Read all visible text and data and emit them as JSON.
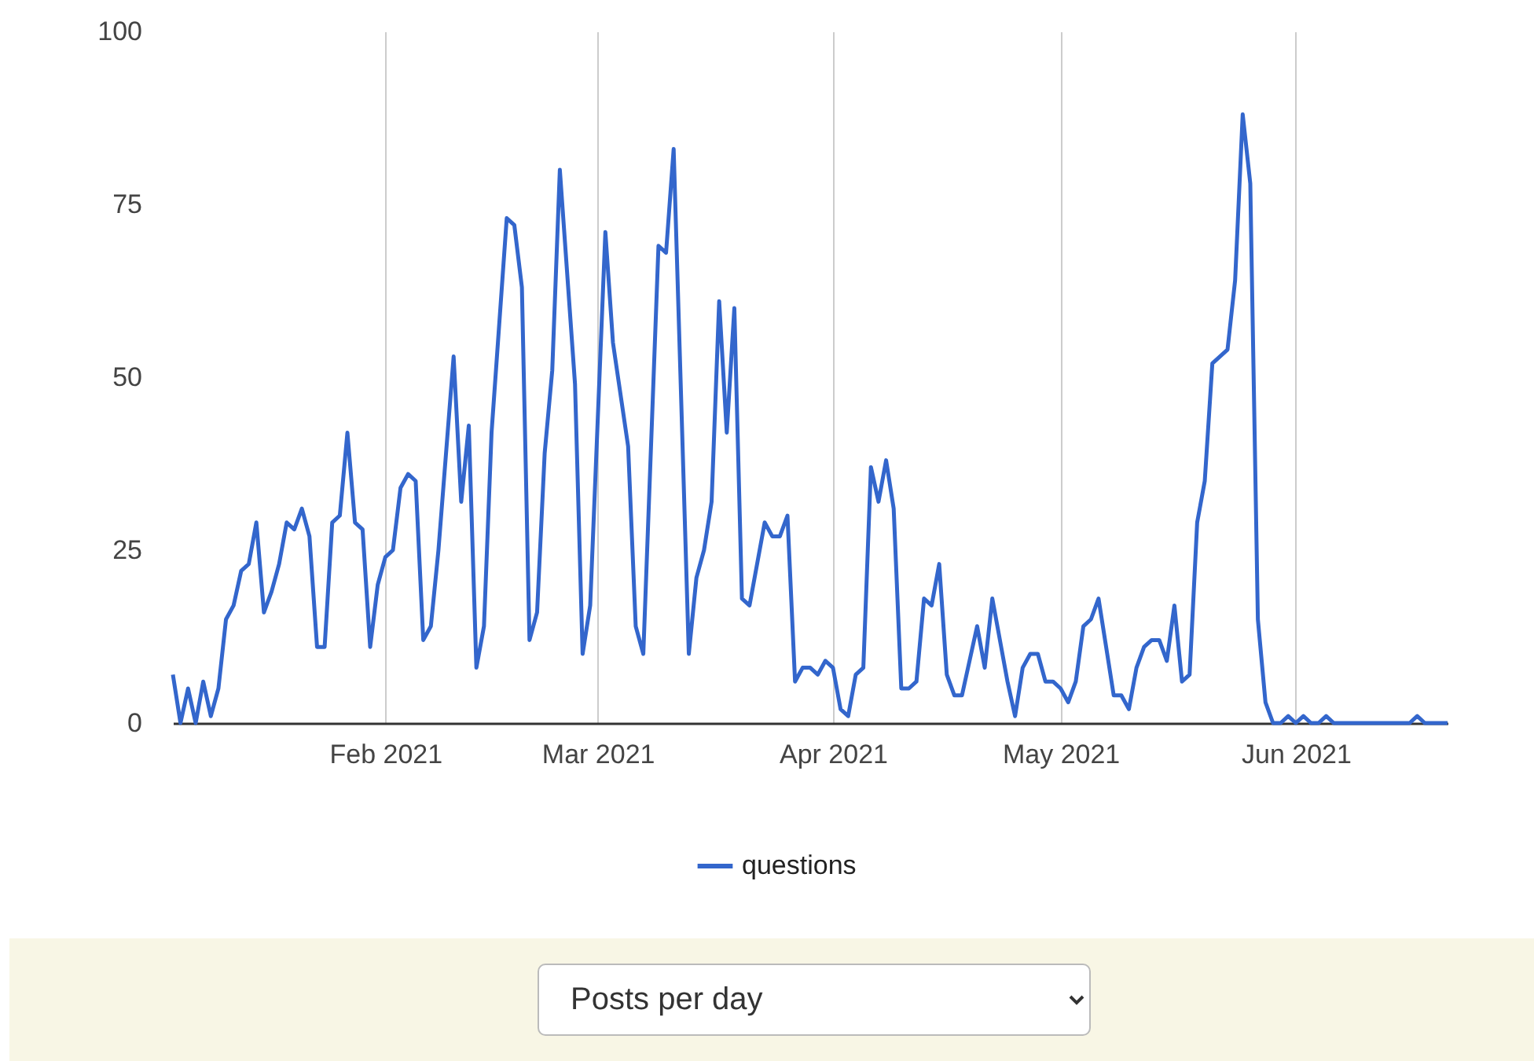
{
  "chart_data": {
    "type": "line",
    "x": [
      "2021-01-04",
      "2021-01-05",
      "2021-01-06",
      "2021-01-07",
      "2021-01-08",
      "2021-01-09",
      "2021-01-10",
      "2021-01-11",
      "2021-01-12",
      "2021-01-13",
      "2021-01-14",
      "2021-01-15",
      "2021-01-16",
      "2021-01-17",
      "2021-01-18",
      "2021-01-19",
      "2021-01-20",
      "2021-01-21",
      "2021-01-22",
      "2021-01-23",
      "2021-01-24",
      "2021-01-25",
      "2021-01-26",
      "2021-01-27",
      "2021-01-28",
      "2021-01-29",
      "2021-01-30",
      "2021-01-31",
      "2021-02-01",
      "2021-02-02",
      "2021-02-03",
      "2021-02-04",
      "2021-02-05",
      "2021-02-06",
      "2021-02-07",
      "2021-02-08",
      "2021-02-10",
      "2021-02-11",
      "2021-02-12",
      "2021-02-13",
      "2021-02-14",
      "2021-02-15",
      "2021-02-17",
      "2021-02-18",
      "2021-02-19",
      "2021-02-20",
      "2021-02-21",
      "2021-02-22",
      "2021-02-23",
      "2021-02-24",
      "2021-02-26",
      "2021-02-27",
      "2021-02-28",
      "2021-03-02",
      "2021-03-03",
      "2021-03-05",
      "2021-03-06",
      "2021-03-07",
      "2021-03-09",
      "2021-03-10",
      "2021-03-11",
      "2021-03-13",
      "2021-03-14",
      "2021-03-15",
      "2021-03-16",
      "2021-03-17",
      "2021-03-18",
      "2021-03-19",
      "2021-03-20",
      "2021-03-21",
      "2021-03-23",
      "2021-03-24",
      "2021-03-25",
      "2021-03-26",
      "2021-03-27",
      "2021-03-28",
      "2021-03-29",
      "2021-03-30",
      "2021-03-31",
      "2021-04-01",
      "2021-04-02",
      "2021-04-03",
      "2021-04-04",
      "2021-04-05",
      "2021-04-06",
      "2021-04-07",
      "2021-04-08",
      "2021-04-09",
      "2021-04-10",
      "2021-04-11",
      "2021-04-12",
      "2021-04-13",
      "2021-04-14",
      "2021-04-15",
      "2021-04-16",
      "2021-04-17",
      "2021-04-18",
      "2021-04-19",
      "2021-04-20",
      "2021-04-21",
      "2021-04-22",
      "2021-04-23",
      "2021-04-24",
      "2021-04-25",
      "2021-04-26",
      "2021-04-27",
      "2021-04-28",
      "2021-04-29",
      "2021-04-30",
      "2021-05-01",
      "2021-05-02",
      "2021-05-03",
      "2021-05-04",
      "2021-05-05",
      "2021-05-06",
      "2021-05-07",
      "2021-05-08",
      "2021-05-09",
      "2021-05-10",
      "2021-05-11",
      "2021-05-12",
      "2021-05-13",
      "2021-05-14",
      "2021-05-15",
      "2021-05-16",
      "2021-05-17",
      "2021-05-18",
      "2021-05-19",
      "2021-05-20",
      "2021-05-21",
      "2021-05-22",
      "2021-05-23",
      "2021-05-24",
      "2021-05-25",
      "2021-05-26",
      "2021-05-27",
      "2021-05-28",
      "2021-05-29",
      "2021-05-30",
      "2021-05-31",
      "2021-06-01",
      "2021-06-02",
      "2021-06-03",
      "2021-06-04",
      "2021-06-05",
      "2021-06-06",
      "2021-06-07",
      "2021-06-08",
      "2021-06-09",
      "2021-06-10",
      "2021-06-11",
      "2021-06-12",
      "2021-06-13",
      "2021-06-14",
      "2021-06-15",
      "2021-06-16",
      "2021-06-17",
      "2021-06-18",
      "2021-06-19",
      "2021-06-20",
      "2021-06-21"
    ],
    "series": [
      {
        "name": "questions",
        "color": "#3366cc",
        "values": [
          7,
          0,
          5,
          0,
          6,
          1,
          5,
          15,
          17,
          22,
          23,
          29,
          16,
          19,
          23,
          29,
          28,
          31,
          27,
          11,
          11,
          29,
          30,
          42,
          29,
          28,
          11,
          20,
          24,
          25,
          34,
          36,
          35,
          12,
          14,
          25,
          53,
          32,
          43,
          8,
          14,
          42,
          73,
          72,
          63,
          12,
          16,
          39,
          51,
          80,
          49,
          10,
          17,
          71,
          55,
          40,
          14,
          10,
          69,
          68,
          83,
          10,
          21,
          25,
          32,
          61,
          42,
          60,
          18,
          17,
          29,
          27,
          27,
          30,
          6,
          8,
          8,
          7,
          9,
          8,
          2,
          1,
          7,
          8,
          37,
          32,
          38,
          31,
          5,
          5,
          6,
          18,
          17,
          23,
          7,
          4,
          4,
          9,
          14,
          8,
          18,
          12,
          6,
          1,
          8,
          10,
          10,
          6,
          6,
          5,
          3,
          6,
          14,
          15,
          18,
          11,
          4,
          4,
          2,
          8,
          11,
          12,
          12,
          9,
          17,
          6,
          7,
          29,
          35,
          52,
          53,
          54,
          64,
          88,
          78,
          15,
          3,
          0,
          0,
          1,
          0,
          1,
          0,
          0,
          1,
          0,
          0,
          0,
          0,
          0,
          0,
          0,
          0,
          0,
          0,
          0,
          1,
          0,
          0,
          0,
          0
        ]
      }
    ],
    "xlim": [
      "2021-01-04",
      "2021-06-21"
    ],
    "xticks": [
      {
        "value": "2021-02-01",
        "label": "Feb 2021"
      },
      {
        "value": "2021-03-01",
        "label": "Mar 2021"
      },
      {
        "value": "2021-04-01",
        "label": "Apr 2021"
      },
      {
        "value": "2021-05-01",
        "label": "May 2021"
      },
      {
        "value": "2021-06-01",
        "label": "Jun 2021"
      }
    ],
    "ylim": [
      0,
      100
    ],
    "yticks": [
      0,
      25,
      50,
      75,
      100
    ],
    "grid": "x",
    "legend": "bottom",
    "marker": "none",
    "line_style": "solid",
    "annotations": [
      "Posts per day"
    ]
  }
}
